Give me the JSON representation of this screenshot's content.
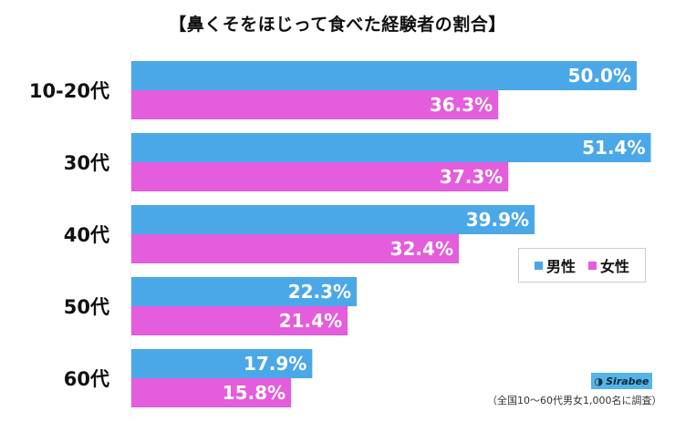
{
  "chart_data": {
    "type": "bar",
    "orientation": "horizontal",
    "title": "【鼻くそをほじって食べた経験者の割合】",
    "categories": [
      "10-20代",
      "30代",
      "40代",
      "50代",
      "60代"
    ],
    "series": [
      {
        "name": "男性",
        "color": "#4aa8e8",
        "values": [
          50.0,
          51.4,
          39.9,
          22.3,
          17.9
        ]
      },
      {
        "name": "女性",
        "color": "#e35ddc",
        "values": [
          36.3,
          37.3,
          32.4,
          21.4,
          15.8
        ]
      }
    ],
    "value_labels": [
      [
        "50.0%",
        "51.4%",
        "39.9%",
        "22.3%",
        "17.9%"
      ],
      [
        "36.3%",
        "37.3%",
        "32.4%",
        "21.4%",
        "15.8%"
      ]
    ],
    "xlim": [
      0,
      55
    ],
    "grid": false,
    "legend_position": "right-middle",
    "unit": "%"
  },
  "brand": {
    "label": "Sirabee",
    "icon": "sirabee-logo-icon"
  },
  "note": "（全国10〜60代男女1,000名に調査）"
}
